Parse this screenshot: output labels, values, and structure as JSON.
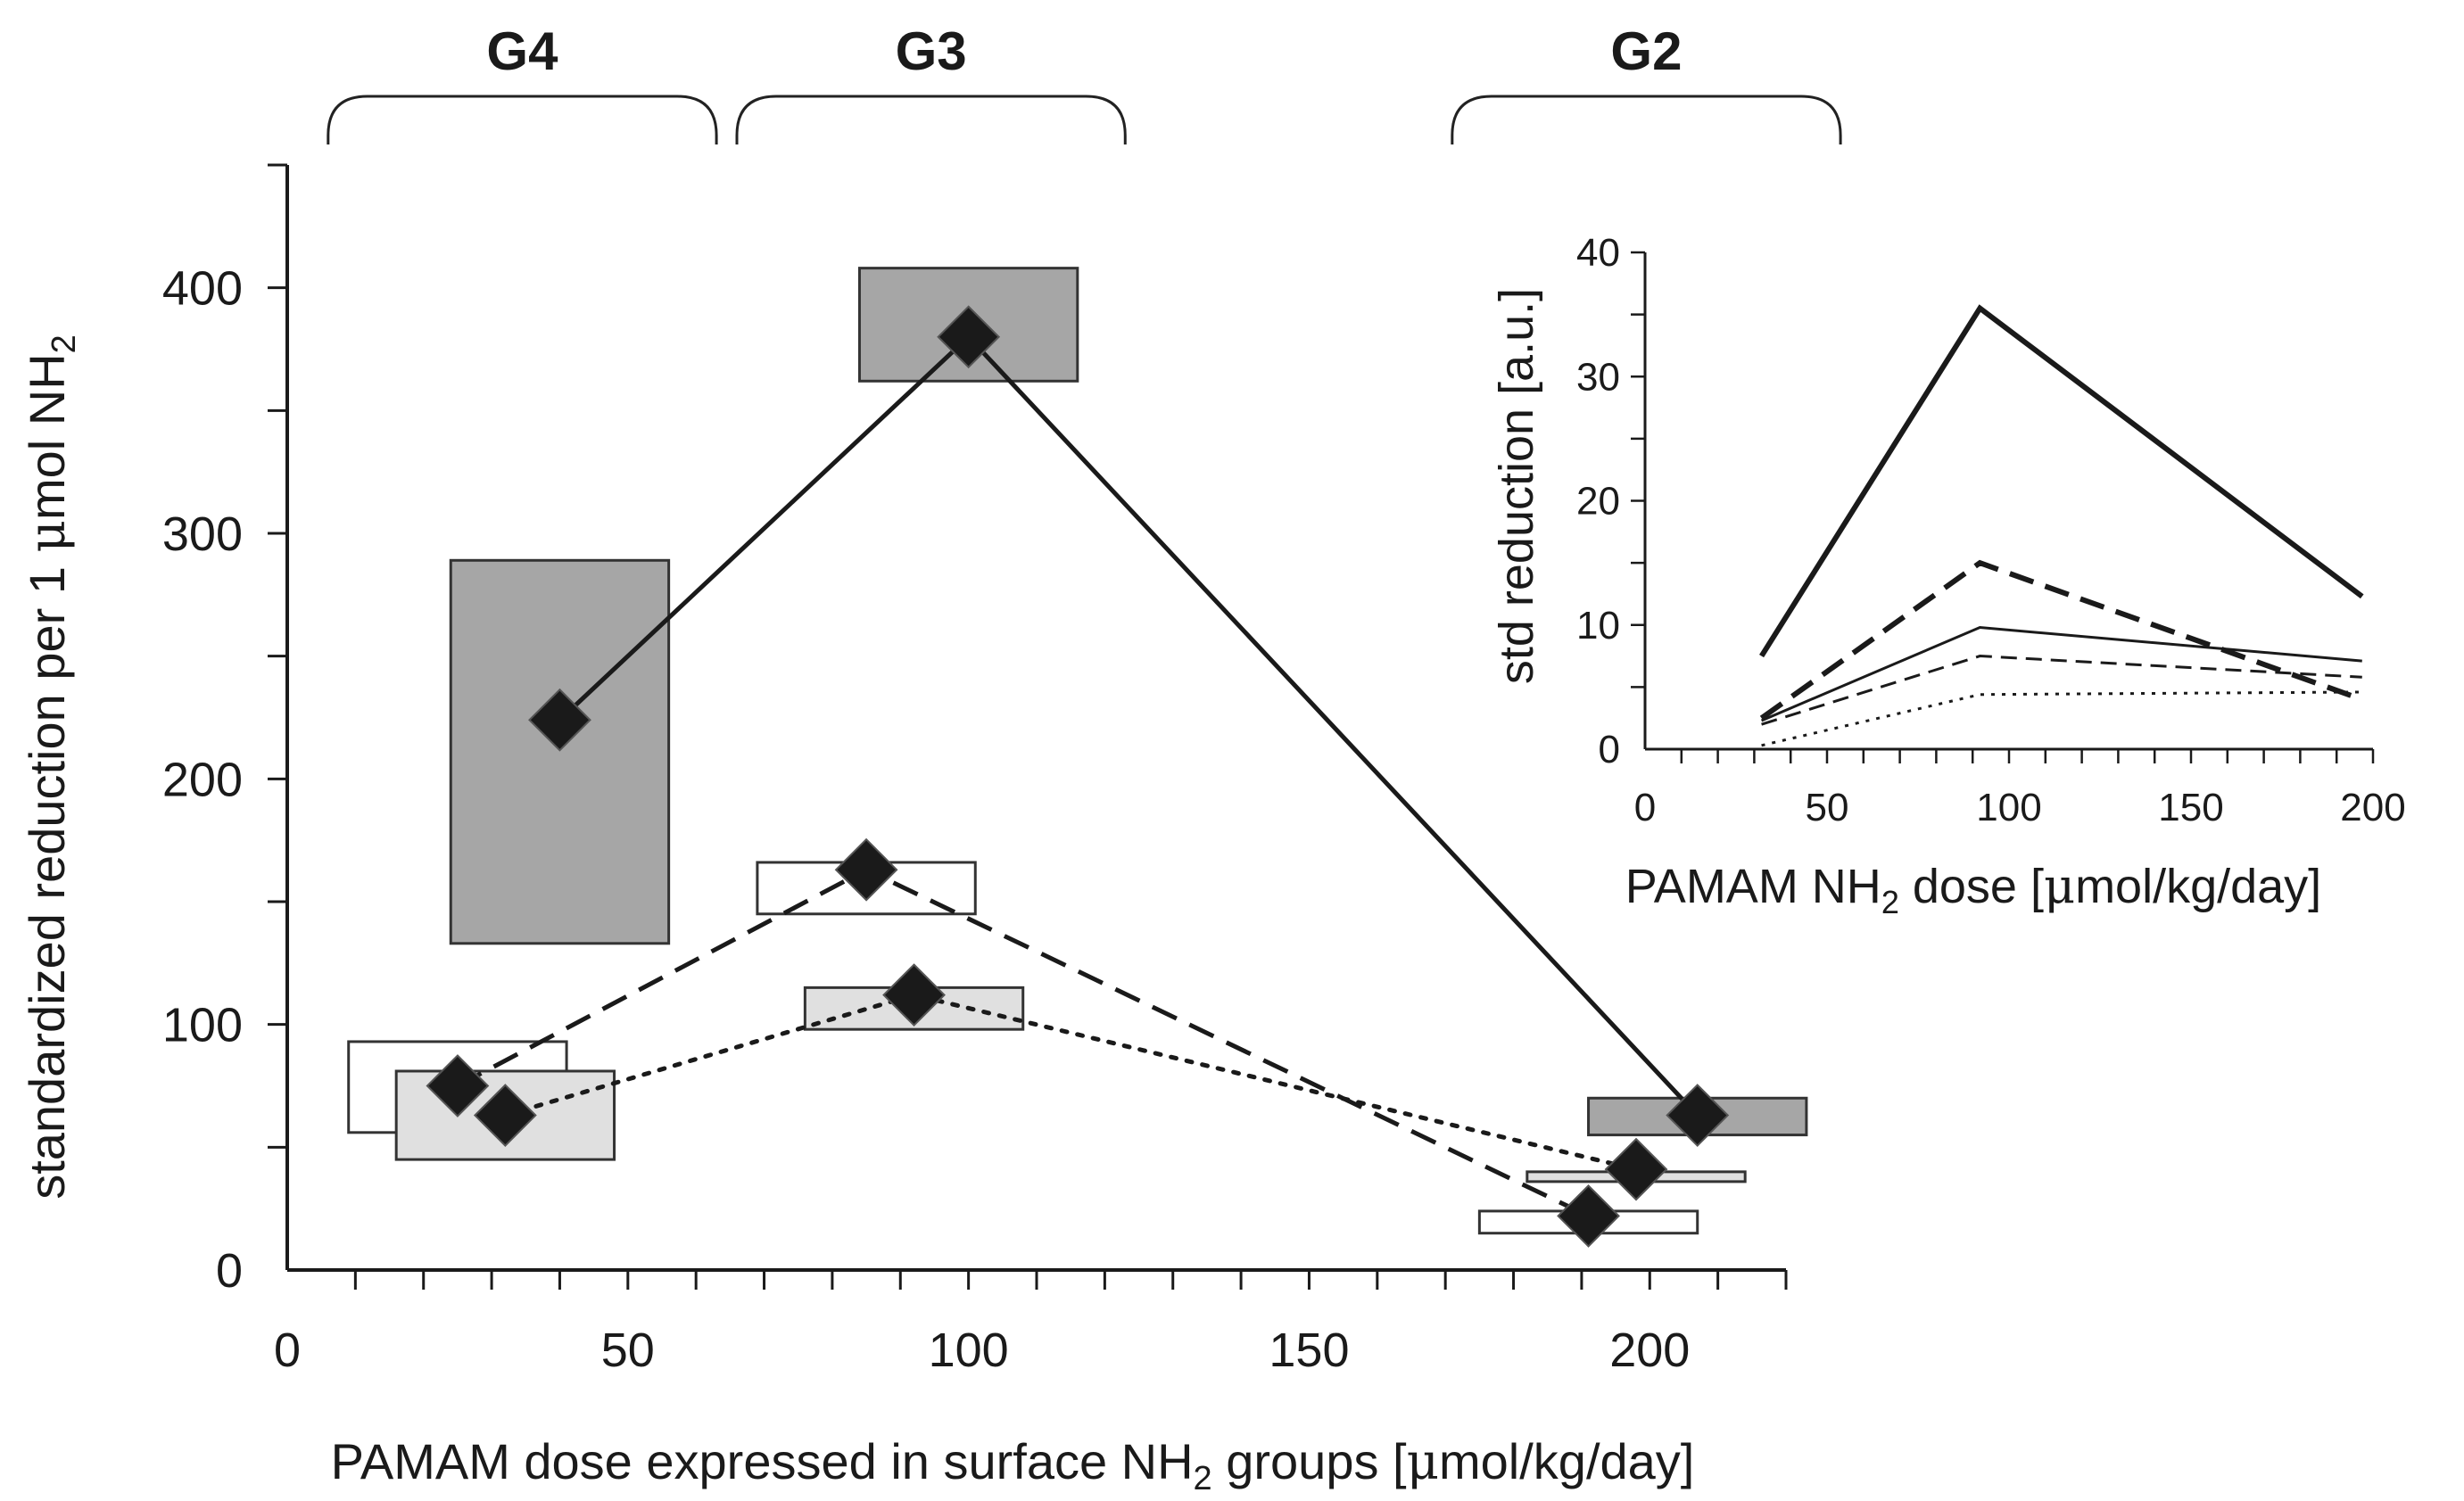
{
  "chart_data": [
    {
      "type": "scatter",
      "panel": "main",
      "xlabel_parts": [
        "PAMAM dose expressed in surface NH",
        "2",
        " groups [",
        "μ",
        "mol/kg/day]"
      ],
      "ylabel_parts": [
        "standardized reduction per 1 ",
        "μ",
        "mol NH",
        "2"
      ],
      "xlim": [
        0,
        220
      ],
      "ylim": [
        0,
        450
      ],
      "x_ticks": [
        0,
        50,
        100,
        150,
        200
      ],
      "x_tick_labels": [
        "0",
        "50",
        "100",
        "150",
        "200"
      ],
      "y_ticks": [
        0,
        100,
        200,
        300,
        400
      ],
      "y_tick_labels": [
        "0",
        "100",
        "200",
        "300",
        "400"
      ],
      "group_brackets": [
        {
          "label": "G4",
          "x_from": 6,
          "x_to": 63
        },
        {
          "label": "G3",
          "x_from": 66,
          "x_to": 123
        },
        {
          "label": "G2",
          "x_from": 171,
          "x_to": 228
        }
      ],
      "series": [
        {
          "name": "solid series",
          "line": "solid",
          "box_fill": "#a6a6a6",
          "points": [
            {
              "x": 40,
              "y": 224,
              "box_x": [
                24,
                56
              ],
              "box_y": [
                133,
                289
              ]
            },
            {
              "x": 100,
              "y": 380,
              "box_x": [
                84,
                116
              ],
              "box_y": [
                362,
                408
              ]
            },
            {
              "x": 207,
              "y": 63,
              "box_x": [
                191,
                223
              ],
              "box_y": [
                55,
                70
              ]
            }
          ]
        },
        {
          "name": "dashed series",
          "line": "dashed",
          "box_fill": "#ffffff",
          "points": [
            {
              "x": 25,
              "y": 75,
              "box_x": [
                9,
                41
              ],
              "box_y": [
                56,
                93
              ]
            },
            {
              "x": 85,
              "y": 163,
              "box_x": [
                69,
                101
              ],
              "box_y": [
                145,
                166
              ]
            },
            {
              "x": 191,
              "y": 22,
              "box_x": [
                175,
                207
              ],
              "box_y": [
                15,
                24
              ]
            }
          ]
        },
        {
          "name": "dotted series",
          "line": "dotted",
          "box_fill": "#e0e0e0",
          "points": [
            {
              "x": 32,
              "y": 63,
              "box_x": [
                16,
                48
              ],
              "box_y": [
                45,
                81
              ]
            },
            {
              "x": 92,
              "y": 112,
              "box_x": [
                76,
                108
              ],
              "box_y": [
                98,
                115
              ]
            },
            {
              "x": 198,
              "y": 41,
              "box_x": [
                182,
                214
              ],
              "box_y": [
                36,
                40
              ]
            }
          ]
        }
      ]
    },
    {
      "type": "line",
      "panel": "inset",
      "xlabel_parts": [
        "PAMAM NH",
        "2",
        " dose [",
        "μ",
        "mol/kg/day]"
      ],
      "ylabel": "std reduction [a.u.]",
      "xlim": [
        0,
        200
      ],
      "ylim": [
        0,
        40
      ],
      "x_ticks": [
        0,
        50,
        100,
        150,
        200
      ],
      "x_tick_labels": [
        "0",
        "50",
        "100",
        "150",
        "200"
      ],
      "y_ticks": [
        0,
        10,
        20,
        30,
        40
      ],
      "y_tick_labels": [
        "0",
        "10",
        "20",
        "30",
        "40"
      ],
      "series": [
        {
          "name": "thick solid",
          "style": "thick-solid",
          "x": [
            32,
            92,
            197
          ],
          "y": [
            7.5,
            35.5,
            12.3
          ]
        },
        {
          "name": "thick dashed",
          "style": "thick-dashed",
          "x": [
            32,
            92,
            197
          ],
          "y": [
            2.5,
            15,
            4
          ]
        },
        {
          "name": "thin solid",
          "style": "thin-solid",
          "x": [
            32,
            92,
            197
          ],
          "y": [
            2.3,
            9.8,
            7.1
          ]
        },
        {
          "name": "thin dashed",
          "style": "thin-dashed",
          "x": [
            32,
            92,
            197
          ],
          "y": [
            2.0,
            7.5,
            5.8
          ]
        },
        {
          "name": "dotted",
          "style": "dotted",
          "x": [
            32,
            92,
            197
          ],
          "y": [
            0.3,
            4.4,
            4.6
          ]
        }
      ]
    }
  ]
}
